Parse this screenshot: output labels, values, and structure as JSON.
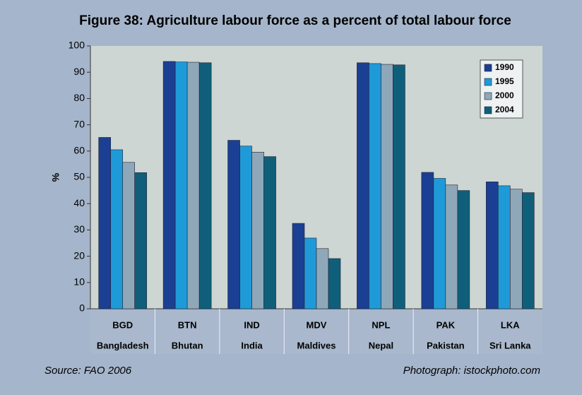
{
  "chart_data": {
    "type": "bar",
    "title": "Figure 38: Agriculture labour force as a percent of total labour force",
    "y_label": "%",
    "categories": [
      "BGD",
      "BTN",
      "IND",
      "MDV",
      "NPL",
      "PAK",
      "LKA"
    ],
    "category_names": [
      "Bangladesh",
      "Bhutan",
      "India",
      "Maldives",
      "Nepal",
      "Pakistan",
      "Sri Lanka"
    ],
    "series": [
      {
        "name": "1990",
        "color": "#1b3f92",
        "values": [
          65.2,
          94.1,
          64.1,
          32.5,
          93.6,
          51.9,
          48.3
        ]
      },
      {
        "name": "1995",
        "color": "#1f9ad8",
        "values": [
          60.5,
          93.9,
          61.9,
          26.9,
          93.3,
          49.6,
          46.8
        ]
      },
      {
        "name": "2000",
        "color": "#8ea8b9",
        "values": [
          55.7,
          93.8,
          59.6,
          22.9,
          93.0,
          47.1,
          45.5
        ]
      },
      {
        "name": "2004",
        "color": "#0f5f7a",
        "values": [
          51.8,
          93.6,
          57.9,
          19.1,
          92.8,
          45.0,
          44.2
        ]
      }
    ],
    "ylim": [
      0,
      100
    ],
    "yticks": [
      0,
      10,
      20,
      30,
      40,
      50,
      60,
      70,
      80,
      90,
      100
    ],
    "legend": "top-right",
    "source": "Source: FAO 2006",
    "credit": "Photograph: istockphoto.com"
  }
}
